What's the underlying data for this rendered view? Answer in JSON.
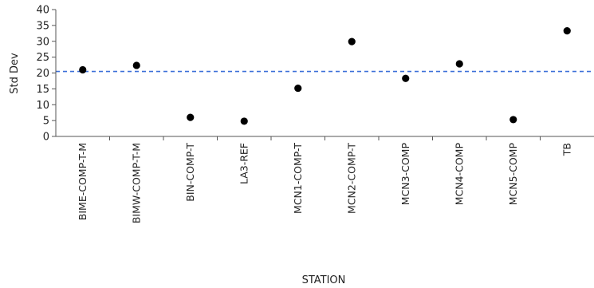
{
  "chart_data": {
    "type": "scatter",
    "xlabel": "STATION",
    "ylabel": "Std Dev",
    "ylim": [
      0,
      40
    ],
    "yticks": [
      0,
      5,
      10,
      15,
      20,
      25,
      30,
      35,
      40
    ],
    "grid": false,
    "categories": [
      "BIME-COMP-T-M",
      "BIMW-COMP-T-M",
      "BIN-COMP-T",
      "LA3-REF",
      "MCN1-COMP-T",
      "MCN2-COMP-T",
      "MCN3-COMP",
      "MCN4-COMP",
      "MCN5-COMP",
      "TB"
    ],
    "values": [
      21.0,
      22.4,
      6.0,
      4.8,
      15.2,
      29.9,
      18.3,
      22.9,
      5.3,
      33.3
    ],
    "reference_line": {
      "value": 20.5,
      "style": "dashed"
    },
    "colors": {
      "points": "#000000",
      "reference_line": "#3b6fd8",
      "axis": "#555555"
    }
  }
}
